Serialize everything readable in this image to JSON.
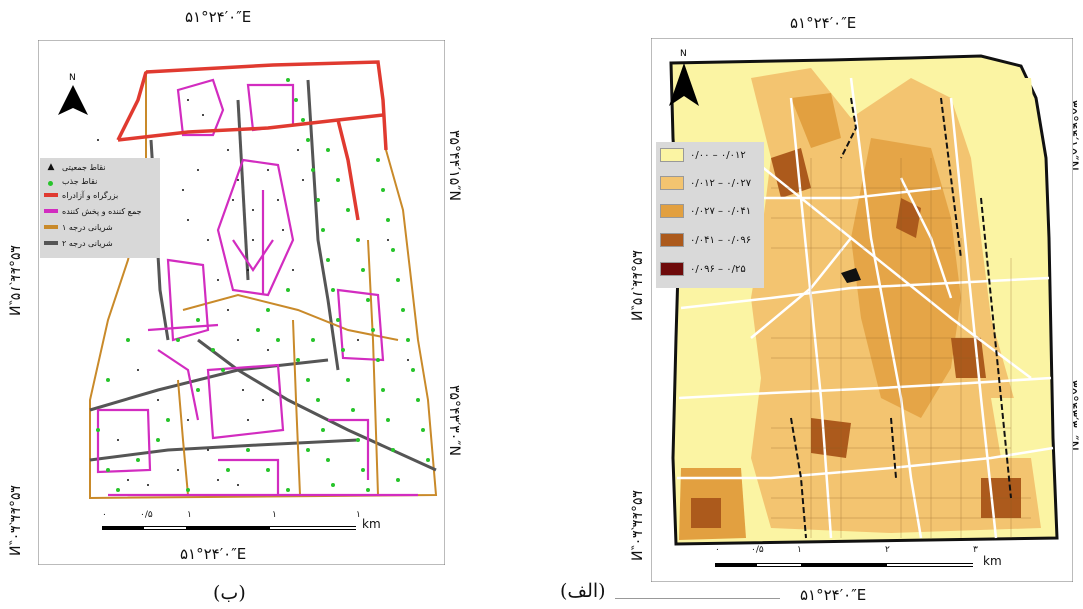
{
  "left_map": {
    "top_coord": "۵۱°۲۴′۰″E",
    "bottom_coord": "۵۱°۲۴′۰″E",
    "left_coord_top": "۳۵°۴۴′۱۵″N",
    "left_coord_bottom": "۳۵°۴۳′۳۰″N",
    "right_coord_top": "۳۵°۴۴′۱۵″N",
    "right_coord_bottom": "۳۵°۴۳′۳۰″N",
    "north": "N",
    "scale_labels": [
      "۰",
      "۰/۵",
      "۱",
      "۱",
      "۱"
    ],
    "scale_unit": "km",
    "caption": "(ب)",
    "legend": [
      {
        "label": "نقاط جمعیتی",
        "color": "#000000",
        "kind": "dot"
      },
      {
        "label": "نقاط جذب",
        "color": "#27c42b",
        "kind": "dot"
      },
      {
        "label": "بزرگراه و آزادراه",
        "color": "#e03a30",
        "kind": "line"
      },
      {
        "label": "جمع کننده و پخش کننده",
        "color": "#d22cc0",
        "kind": "line"
      },
      {
        "label": "شریانی درجه ۱",
        "color": "#c98a2a",
        "kind": "line"
      },
      {
        "label": "شریانی درجه ۲",
        "color": "#555555",
        "kind": "line"
      }
    ]
  },
  "right_map": {
    "top_coord": "۵۱°۲۴′۰″E",
    "bottom_coord": "۵۱°۲۴′۰″E",
    "left_coord_top": "۳۵°۴۴′۱۵″N",
    "left_coord_bottom": "۳۵°۴۳′۳۰″N",
    "right_coord_top": "۳۵°۴۴′۱۵″N",
    "right_coord_bottom": "۳۵°۴۳′۳۰″N",
    "north": "N",
    "scale_labels": [
      "۰",
      "۰/۵",
      "۱",
      "۲",
      "۳"
    ],
    "scale_unit": "km",
    "caption": "(الف)",
    "legend": [
      {
        "label": "۰/۰۰ – ۰/۰۱۲",
        "color": "#fbf4a3"
      },
      {
        "label": "۰/۰۱۲ – ۰/۰۲۷",
        "color": "#f3c470"
      },
      {
        "label": "۰/۰۲۷ – ۰/۰۴۱",
        "color": "#e2a040"
      },
      {
        "label": "۰/۰۴۱ – ۰/۰۹۶",
        "color": "#ac5a1c"
      },
      {
        "label": "۰/۰۹۶ – ۰/۲۵",
        "color": "#6e0a0a"
      }
    ]
  }
}
